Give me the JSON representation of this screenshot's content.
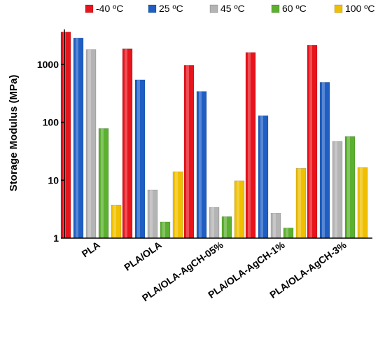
{
  "chart_data": {
    "type": "bar",
    "title": "",
    "xlabel": "",
    "ylabel": "Storage Modulus (MPa)",
    "yscale": "log",
    "ylim": [
      1,
      4000
    ],
    "yticks": [
      "1",
      "10",
      "100",
      "1000"
    ],
    "grid": false,
    "legend_position": "top",
    "categories": [
      "PLA",
      "PLA/OLA",
      "PLA/OLA-AgCH-05%",
      "PLA/OLA-AgCH-1%",
      "PLA/OLA-AgCH-3%"
    ],
    "series": [
      {
        "name": "-40 ºC",
        "color": "#e8141c",
        "values": [
          3600,
          1850,
          960,
          1600,
          2150
        ]
      },
      {
        "name": "25 ºC",
        "color": "#1f5fc4",
        "values": [
          2850,
          540,
          340,
          130,
          490
        ]
      },
      {
        "name": "45 ºC",
        "color": "#b4b4b4",
        "values": [
          1800,
          6.8,
          3.4,
          2.7,
          47
        ]
      },
      {
        "name": "60 ºC",
        "color": "#5cb030",
        "values": [
          78,
          1.9,
          2.35,
          1.5,
          57
        ]
      },
      {
        "name": "100 ºC",
        "color": "#f0c000",
        "values": [
          3.7,
          14,
          9.8,
          16,
          16.5
        ]
      }
    ]
  }
}
